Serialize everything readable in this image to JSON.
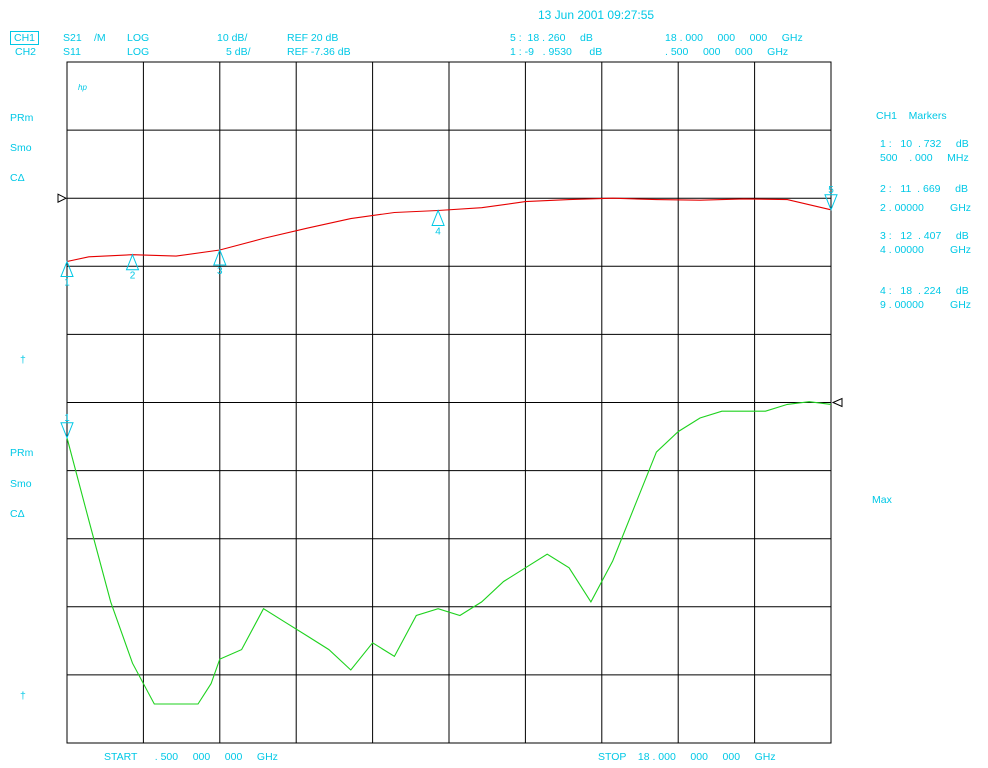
{
  "header": {
    "datetime": "13 Jun 2001  09:27:55",
    "ch1": {
      "label": "CH1",
      "param": "S21",
      "mode": "/M",
      "format": "LOG",
      "scale": "10 dB/",
      "ref": "REF 20 dB",
      "marker_readout": "5 :  18 . 260     dB",
      "marker_freq": "18 . 000     000     000     GHz"
    },
    "ch2": {
      "label": "CH2",
      "param": "S11",
      "format": "LOG",
      "scale": "5 dB/",
      "ref": "REF -7.36 dB",
      "marker_readout": "1 : -9   . 9530      dB",
      "marker_freq": ". 500     000     000     GHz"
    }
  },
  "left_annotations": {
    "upper": {
      "hp": "hp",
      "prm": "PRm",
      "smo": "Smo",
      "cd": "CΔ",
      "arrow": "†"
    },
    "lower": {
      "prm": "PRm",
      "smo": "Smo",
      "cd": "CΔ",
      "arrow": "†"
    }
  },
  "markers_panel": {
    "title": "CH1    Markers",
    "entries": [
      {
        "line1": "1 :   10  . 732     dB",
        "line2": "500    . 000     MHz"
      },
      {
        "line1": "2 :   11  . 669     dB",
        "line2": "2 . 00000         GHz"
      },
      {
        "line1": "3 :   12  . 407     dB",
        "line2": "4 . 00000         GHz"
      },
      {
        "line1": "4 :   18  . 224     dB",
        "line2": "9 . 00000         GHz"
      }
    ],
    "max_label": "Max"
  },
  "footer": {
    "start": "START      . 500     000     000     GHz",
    "stop": "STOP    18 . 000     000     000     GHz"
  },
  "grid": {
    "x_divisions": 10,
    "y_divisions": 10
  },
  "colors": {
    "annotation": "#00c8e6",
    "ch1_trace": "#e60000",
    "ch2_trace": "#1ed21e",
    "grid": "#000000"
  },
  "chart_data": {
    "type": "line",
    "x_unit": "GHz",
    "xlim": [
      0.5,
      18.0
    ],
    "series": [
      {
        "name": "S21",
        "x": [
          0.5,
          1.0,
          2.0,
          3.0,
          4.0,
          5.0,
          6.0,
          7.0,
          8.0,
          9.0,
          10.0,
          11.0,
          12.0,
          13.0,
          14.0,
          15.0,
          16.0,
          17.0,
          18.0
        ],
        "y": [
          10.7,
          11.4,
          11.7,
          11.5,
          12.4,
          14.1,
          15.6,
          17.0,
          17.9,
          18.2,
          18.6,
          19.5,
          19.8,
          20.0,
          19.8,
          19.7,
          19.9,
          19.8,
          18.3
        ],
        "ref": 20,
        "scale": 10
      },
      {
        "name": "S11",
        "x": [
          0.5,
          1.0,
          1.5,
          2.0,
          2.5,
          3.0,
          3.5,
          3.8,
          4.0,
          4.5,
          5.0,
          5.5,
          6.0,
          6.5,
          7.0,
          7.5,
          8.0,
          8.5,
          9.0,
          9.5,
          10.0,
          10.5,
          11.0,
          11.5,
          12.0,
          12.5,
          13.0,
          13.5,
          14.0,
          14.5,
          15.0,
          15.5,
          16.0,
          16.5,
          17.0,
          17.5,
          18.0
        ],
        "y": [
          -9.95,
          -16,
          -22,
          -26.5,
          -29.5,
          -29.5,
          -29.5,
          -28,
          -26.2,
          -25.5,
          -22.5,
          -23.5,
          -24.5,
          -25.5,
          -27,
          -25,
          -26,
          -23,
          -22.5,
          -23,
          -22,
          -20.5,
          -19.5,
          -18.5,
          -19.5,
          -22,
          -19,
          -15,
          -11,
          -9.5,
          -8.5,
          -8,
          -8,
          -8,
          -7.5,
          -7.3,
          -7.5
        ],
        "ref": -7.36,
        "scale": 5
      }
    ],
    "markers": [
      {
        "channel": "S21",
        "id": "1",
        "x": 0.5
      },
      {
        "channel": "S21",
        "id": "2",
        "x": 2.0
      },
      {
        "channel": "S21",
        "id": "3",
        "x": 4.0
      },
      {
        "channel": "S21",
        "id": "4",
        "x": 9.0
      },
      {
        "channel": "S21",
        "id": "5",
        "x": 18.0
      },
      {
        "channel": "S11",
        "id": "1",
        "x": 0.5
      }
    ]
  }
}
